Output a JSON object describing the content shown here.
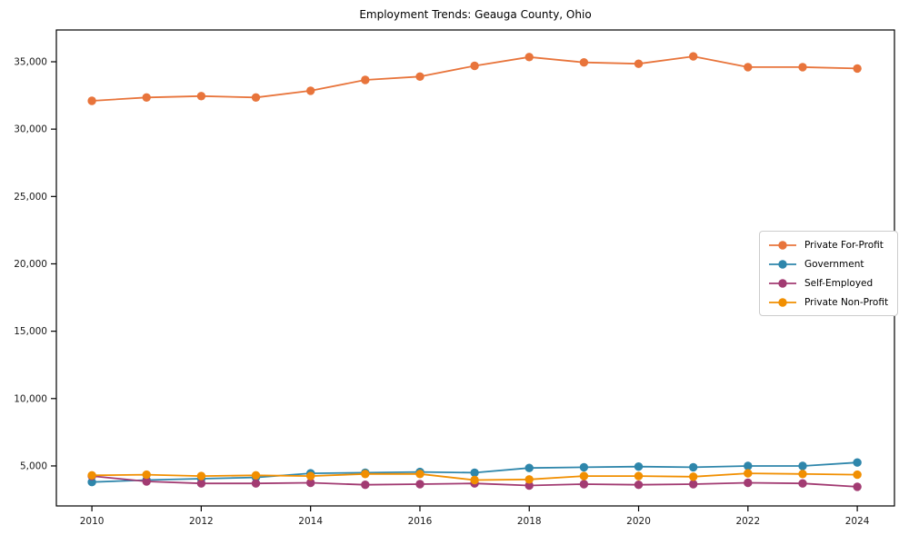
{
  "figure": {
    "background": "#ffffff",
    "frame_color": "#000000",
    "tick_color": "#000000",
    "tick_label_color": "#1a1a1a"
  },
  "chart_data": {
    "type": "line",
    "title": "Employment Trends: Geauga County, Ohio",
    "xlabel": "",
    "ylabel": "",
    "grid": false,
    "legend_position": "center-right",
    "x": [
      2010,
      2011,
      2012,
      2013,
      2014,
      2015,
      2016,
      2017,
      2018,
      2019,
      2020,
      2021,
      2022,
      2023,
      2024
    ],
    "series": [
      {
        "name": "Private For-Profit",
        "color": "#e8743b",
        "values": [
          32100,
          32350,
          32450,
          32350,
          32850,
          33650,
          33900,
          34700,
          35350,
          34950,
          34850,
          35400,
          34600,
          34600,
          34500
        ]
      },
      {
        "name": "Government",
        "color": "#2e86ab",
        "values": [
          3800,
          3950,
          4050,
          4150,
          4450,
          4500,
          4550,
          4500,
          4850,
          4900,
          4950,
          4900,
          5000,
          5000,
          5250
        ]
      },
      {
        "name": "Self-Employed",
        "color": "#a23b72",
        "values": [
          4250,
          3850,
          3700,
          3700,
          3750,
          3600,
          3650,
          3700,
          3550,
          3650,
          3600,
          3650,
          3750,
          3700,
          3450
        ]
      },
      {
        "name": "Private Non-Profit",
        "color": "#f18f01",
        "values": [
          4300,
          4350,
          4250,
          4300,
          4250,
          4400,
          4400,
          3950,
          4000,
          4250,
          4250,
          4200,
          4450,
          4400,
          4350
        ]
      }
    ],
    "xlim": [
      2009.35,
      2024.68
    ],
    "ylim": [
      2030,
      37360
    ],
    "x_ticks": [
      2010,
      2012,
      2014,
      2016,
      2018,
      2020,
      2022,
      2024
    ],
    "x_tick_labels": [
      "2010",
      "2012",
      "2014",
      "2016",
      "2018",
      "2020",
      "2022",
      "2024"
    ],
    "y_ticks": [
      5000,
      10000,
      15000,
      20000,
      25000,
      30000,
      35000
    ],
    "y_tick_labels": [
      "5,000",
      "10,000",
      "15,000",
      "20,000",
      "25,000",
      "30,000",
      "35,000"
    ]
  }
}
